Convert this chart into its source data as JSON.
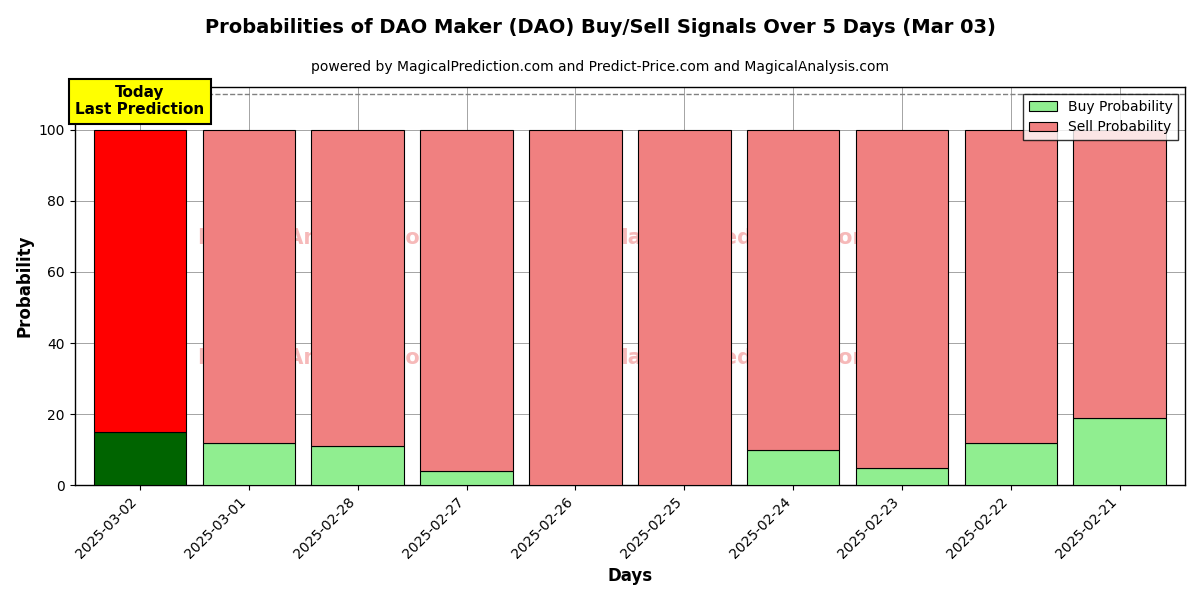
{
  "title": "Probabilities of DAO Maker (DAO) Buy/Sell Signals Over 5 Days (Mar 03)",
  "subtitle": "powered by MagicalPrediction.com and Predict-Price.com and MagicalAnalysis.com",
  "xlabel": "Days",
  "ylabel": "Probability",
  "categories": [
    "2025-03-02",
    "2025-03-01",
    "2025-02-28",
    "2025-02-27",
    "2025-02-26",
    "2025-02-25",
    "2025-02-24",
    "2025-02-23",
    "2025-02-22",
    "2025-02-21"
  ],
  "buy_values": [
    15,
    12,
    11,
    4,
    0,
    0,
    10,
    5,
    12,
    19
  ],
  "sell_values": [
    85,
    88,
    89,
    96,
    100,
    100,
    90,
    95,
    88,
    81
  ],
  "today_buy_color": "#006400",
  "today_sell_color": "#FF0000",
  "buy_color": "#90EE90",
  "sell_color": "#F08080",
  "today_label": "Today\nLast Prediction",
  "today_label_bg": "#FFFF00",
  "legend_buy": "Buy Probability",
  "legend_sell": "Sell Probability",
  "ylim": [
    0,
    112
  ],
  "dashed_line_y": 110,
  "background_color": "#ffffff",
  "bar_width": 0.85
}
